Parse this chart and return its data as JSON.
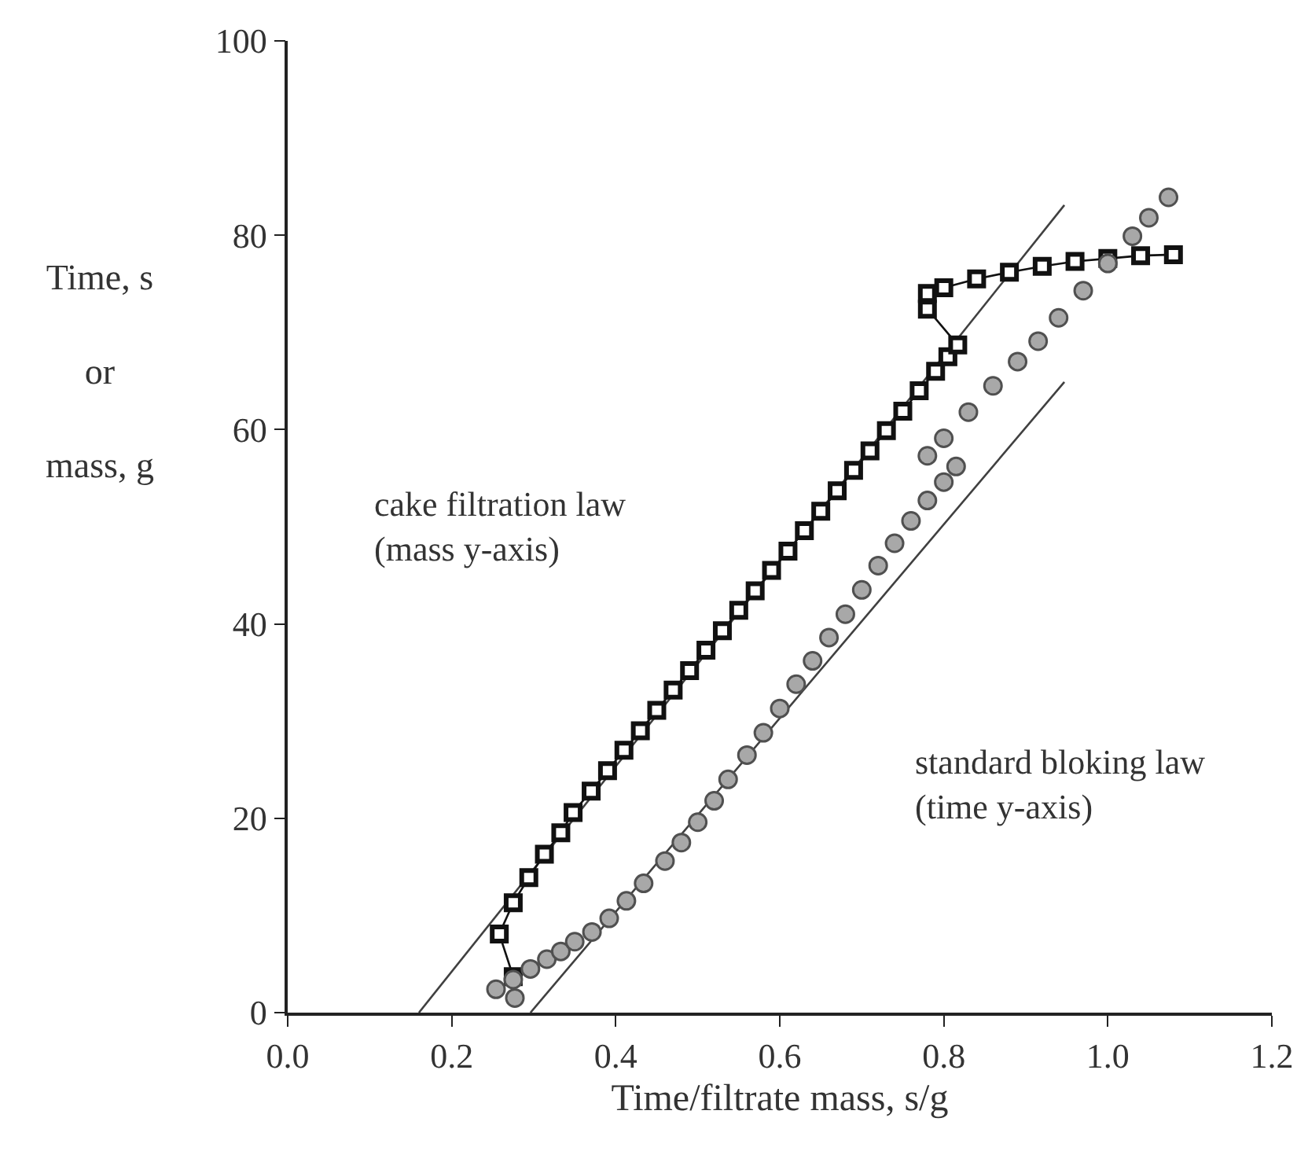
{
  "chart_data": {
    "type": "scatter",
    "xlabel": "Time/filtrate mass, s/g",
    "ylabel": "Time, s\nor\nmass, g",
    "xlim": [
      0,
      1.2
    ],
    "ylim": [
      0,
      100
    ],
    "xticks": [
      {
        "value": 0,
        "label": "0.0"
      },
      {
        "value": 0.2,
        "label": "0.2"
      },
      {
        "value": 0.4,
        "label": "0.4"
      },
      {
        "value": 0.6,
        "label": "0.6"
      },
      {
        "value": 0.8,
        "label": "0.8"
      },
      {
        "value": 1.0,
        "label": "1.0"
      },
      {
        "value": 1.2,
        "label": "1.2"
      }
    ],
    "yticks": [
      0,
      20,
      40,
      60,
      80,
      100
    ],
    "grid": false,
    "series": [
      {
        "type": "line",
        "color": "#404040",
        "marker": "none",
        "x": [
          0.16,
          0.947
        ],
        "values": [
          0,
          83.1
        ]
      },
      {
        "type": "line",
        "color": "#404040",
        "marker": "none",
        "x": [
          0.296,
          0.947
        ],
        "values": [
          0,
          64.9
        ]
      },
      {
        "type": "line",
        "color": "#111111",
        "marker": "square",
        "x": [
          0.275,
          0.258,
          0.275,
          0.294,
          0.313,
          0.333,
          0.348,
          0.37,
          0.39,
          0.41,
          0.43,
          0.45,
          0.47,
          0.49,
          0.51,
          0.53,
          0.55,
          0.57,
          0.59,
          0.61,
          0.63,
          0.65,
          0.67,
          0.69,
          0.71,
          0.73,
          0.75,
          0.77,
          0.79,
          0.805,
          0.817,
          0.78,
          0.78,
          0.8,
          0.84,
          0.88,
          0.92,
          0.96,
          1.0,
          1.04,
          1.08
        ],
        "values": [
          3.7,
          8.1,
          11.3,
          13.9,
          16.3,
          18.5,
          20.6,
          22.8,
          24.9,
          27.0,
          29.0,
          31.1,
          33.2,
          35.2,
          37.3,
          39.3,
          41.4,
          43.4,
          45.5,
          47.5,
          49.6,
          51.6,
          53.7,
          55.8,
          57.8,
          59.9,
          61.9,
          64.0,
          66.0,
          67.5,
          68.7,
          72.4,
          74.0,
          74.6,
          75.5,
          76.2,
          76.8,
          77.3,
          77.6,
          77.9,
          78.0
        ]
      },
      {
        "type": "scatter",
        "color": "#a8a8a8",
        "marker": "circle",
        "x": [
          0.277,
          0.254,
          0.275,
          0.296,
          0.316,
          0.333,
          0.35,
          0.371,
          0.392,
          0.413,
          0.434,
          0.46,
          0.48,
          0.5,
          0.52,
          0.537,
          0.56,
          0.58,
          0.6,
          0.62,
          0.64,
          0.66,
          0.68,
          0.7,
          0.72,
          0.74,
          0.76,
          0.78,
          0.8,
          0.815,
          0.78,
          0.8,
          0.83,
          0.86,
          0.89,
          0.915,
          0.94,
          0.97,
          1.0,
          1.03,
          1.05,
          1.074
        ],
        "values": [
          1.5,
          2.4,
          3.4,
          4.5,
          5.5,
          6.3,
          7.3,
          8.3,
          9.7,
          11.5,
          13.3,
          15.6,
          17.5,
          19.6,
          21.8,
          24.0,
          26.5,
          28.8,
          31.3,
          33.8,
          36.2,
          38.6,
          41.0,
          43.5,
          46.0,
          48.3,
          50.6,
          52.7,
          54.6,
          56.2,
          57.3,
          59.1,
          61.8,
          64.5,
          67.0,
          69.1,
          71.5,
          74.3,
          77.1,
          79.9,
          81.8,
          83.9
        ]
      }
    ],
    "annotations": [
      "cake filtration law\n(mass y-axis)",
      "standard bloking law\n(time y-axis)"
    ]
  }
}
